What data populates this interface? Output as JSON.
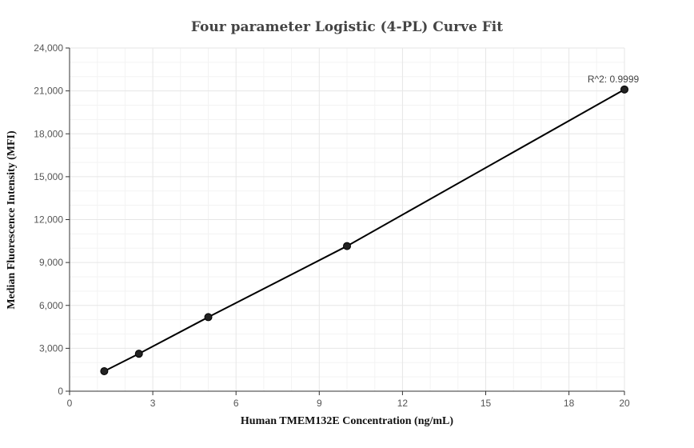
{
  "chart_data": {
    "type": "scatter",
    "title": "Four parameter Logistic (4-PL) Curve Fit",
    "xlabel": "Human TMEM132E Concentration (ng/mL)",
    "ylabel": "Median Fluorescence Intensity (MFI)",
    "xlim": [
      0,
      20
    ],
    "ylim": [
      0,
      24000
    ],
    "x_ticks": [
      0,
      3,
      6,
      9,
      12,
      15,
      18,
      20
    ],
    "x_tick_labels": [
      "0",
      "3",
      "6",
      "9",
      "12",
      "15",
      "18",
      "20"
    ],
    "y_ticks": [
      0,
      3000,
      6000,
      9000,
      12000,
      15000,
      18000,
      21000,
      24000
    ],
    "y_tick_labels": [
      "0",
      "3,000",
      "6,000",
      "9,000",
      "12,000",
      "15,000",
      "18,000",
      "21,000",
      "24,000"
    ],
    "grid": true,
    "series": [
      {
        "x": [
          1.25,
          2.5,
          5,
          10,
          20
        ],
        "y": [
          1400,
          2620,
          5180,
          10150,
          21100
        ]
      }
    ],
    "fit_curve": {
      "x": [
        1.25,
        2.5,
        5,
        10,
        20
      ],
      "y": [
        1400,
        2620,
        5180,
        10150,
        21100
      ]
    },
    "annotation": {
      "text": "R^2: 0.9999",
      "x": 20,
      "y": 21100
    }
  }
}
